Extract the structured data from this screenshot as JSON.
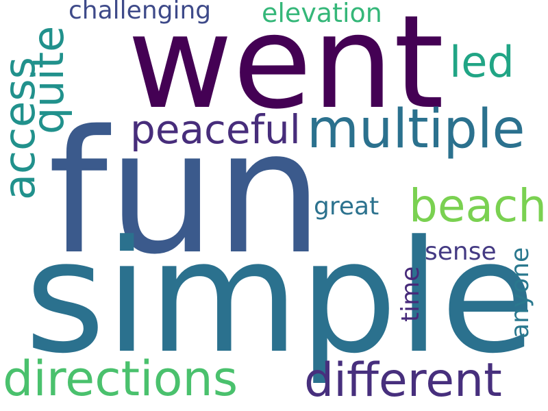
{
  "words": [
    {
      "text": "went",
      "color": "#440154"
    },
    {
      "text": "fun",
      "color": "#3b5a8c"
    },
    {
      "text": "simple",
      "color": "#2b718e"
    },
    {
      "text": "multiple",
      "color": "#2b718e"
    },
    {
      "text": "peaceful",
      "color": "#472d7b"
    },
    {
      "text": "beach",
      "color": "#7ad151"
    },
    {
      "text": "directions",
      "color": "#4ac16d"
    },
    {
      "text": "different",
      "color": "#472f7d"
    },
    {
      "text": "access",
      "color": "#21918c"
    },
    {
      "text": "quite",
      "color": "#21918c"
    },
    {
      "text": "led",
      "color": "#21a585"
    },
    {
      "text": "challenging",
      "color": "#3e4a89"
    },
    {
      "text": "elevation",
      "color": "#35b779"
    },
    {
      "text": "great",
      "color": "#2c728e"
    },
    {
      "text": "sense",
      "color": "#443a83"
    },
    {
      "text": "time",
      "color": "#472a7a"
    },
    {
      "text": "anyone",
      "color": "#2a788e"
    }
  ]
}
